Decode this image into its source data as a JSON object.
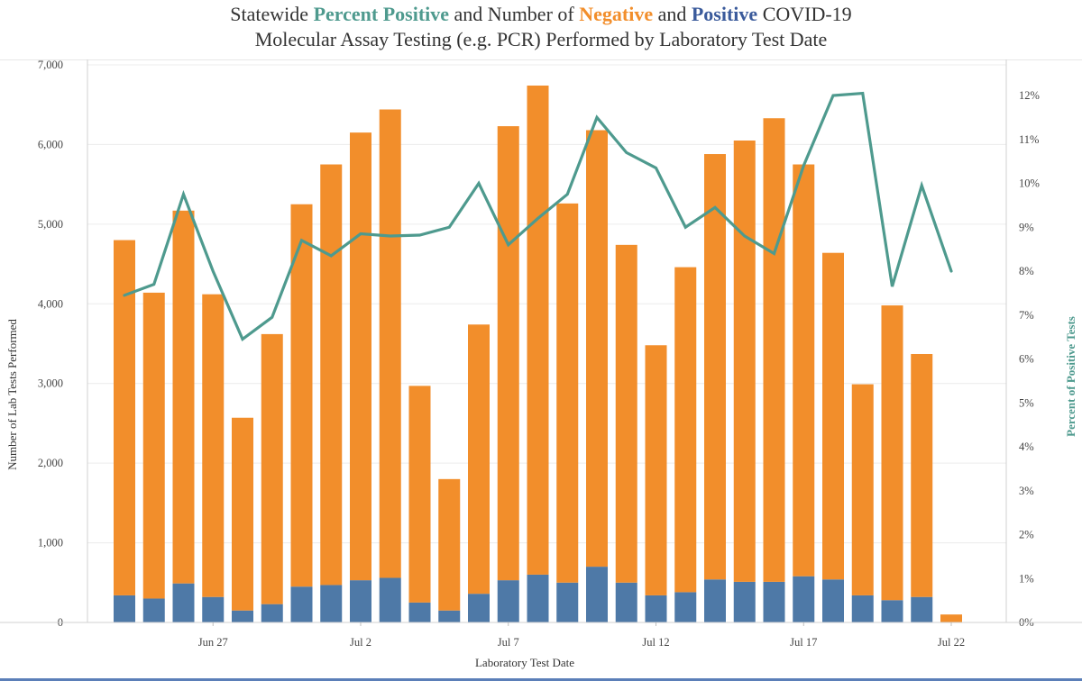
{
  "title": {
    "p1": "Statewide ",
    "h1": "Percent Positive",
    "p2": " and Number of ",
    "h2": "Negative",
    "p3": " and ",
    "h3": "Positive",
    "p4": " COVID-19",
    "line2": "Molecular Assay Testing (e.g. PCR) Performed by Laboratory Test Date"
  },
  "colors": {
    "negative": "#f28e2b",
    "positive": "#4e79a7",
    "percent_line": "#4e9a8e"
  },
  "chart_data": {
    "type": "bar",
    "stacked": true,
    "xlabel": "Laboratory Test Date",
    "ylabel": "Number of Lab Tests Performed",
    "y2label": "Percent of Positive Tests",
    "ylim": [
      0,
      7000
    ],
    "y2lim": [
      0,
      12
    ],
    "yticks": [
      "0",
      "1,000",
      "2,000",
      "3,000",
      "4,000",
      "5,000",
      "6,000",
      "7,000"
    ],
    "y2ticks": [
      "0%",
      "1%",
      "2%",
      "3%",
      "4%",
      "5%",
      "6%",
      "7%",
      "8%",
      "9%",
      "10%",
      "11%",
      "12%"
    ],
    "xtick_labels": [
      {
        "label": "Jun 27",
        "index": 3
      },
      {
        "label": "Jul 2",
        "index": 8
      },
      {
        "label": "Jul 7",
        "index": 13
      },
      {
        "label": "Jul 12",
        "index": 18
      },
      {
        "label": "Jul 17",
        "index": 23
      },
      {
        "label": "Jul 22",
        "index": 28
      }
    ],
    "grid": "horizontal",
    "categories": [
      "Jun 24",
      "Jun 25",
      "Jun 26",
      "Jun 27",
      "Jun 28",
      "Jun 29",
      "Jun 30",
      "Jul 1",
      "Jul 2",
      "Jul 3",
      "Jul 4",
      "Jul 5",
      "Jul 6",
      "Jul 7",
      "Jul 8",
      "Jul 9",
      "Jul 10",
      "Jul 11",
      "Jul 12",
      "Jul 13",
      "Jul 14",
      "Jul 15",
      "Jul 16",
      "Jul 17",
      "Jul 18",
      "Jul 19",
      "Jul 20",
      "Jul 21",
      "Jul 22"
    ],
    "series": [
      {
        "name": "Positive",
        "values": [
          340,
          300,
          490,
          320,
          150,
          230,
          450,
          470,
          530,
          560,
          250,
          150,
          360,
          530,
          600,
          500,
          700,
          500,
          340,
          380,
          540,
          510,
          510,
          580,
          540,
          340,
          280,
          320,
          0
        ]
      },
      {
        "name": "Negative",
        "values": [
          4460,
          3840,
          4680,
          3800,
          2420,
          3390,
          4800,
          5280,
          5620,
          5880,
          2720,
          1650,
          3380,
          5700,
          6140,
          4760,
          5480,
          4240,
          3140,
          4080,
          5340,
          5540,
          5820,
          5170,
          4100,
          2650,
          3700,
          3050,
          100
        ]
      }
    ],
    "percent_positive": [
      7.45,
      7.7,
      9.75,
      8.0,
      6.45,
      6.95,
      8.7,
      8.35,
      8.85,
      8.8,
      8.82,
      9.0,
      10.0,
      8.6,
      9.2,
      9.75,
      11.5,
      10.7,
      10.35,
      9.0,
      9.45,
      8.8,
      8.4,
      10.4,
      12.0,
      12.05,
      7.65,
      9.95,
      8.0
    ]
  }
}
